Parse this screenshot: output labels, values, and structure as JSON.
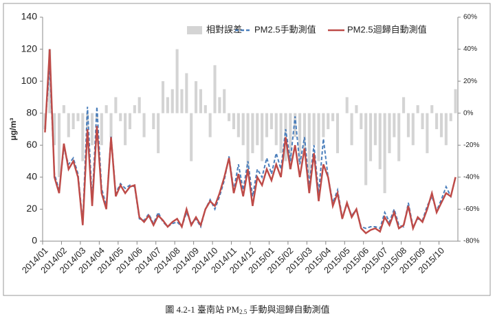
{
  "chart_data": {
    "type": "combo",
    "ylabel": "μg/m³",
    "caption": [
      "圖 4.2-1 臺南站 PM",
      "2.5",
      " 手動與迴歸自動測值"
    ],
    "categories": [
      "2014/01",
      null,
      null,
      null,
      "2014/02",
      null,
      null,
      null,
      "2014/03",
      null,
      null,
      null,
      "2014/04",
      null,
      null,
      null,
      "2014/05",
      null,
      null,
      null,
      "2014/06",
      null,
      null,
      null,
      "2014/07",
      null,
      null,
      null,
      "2014/08",
      null,
      null,
      null,
      "2014/09",
      null,
      null,
      null,
      "2014/10",
      null,
      null,
      null,
      "2014/11",
      null,
      null,
      null,
      "2014/12",
      null,
      null,
      null,
      "2015/01",
      null,
      null,
      null,
      "2015/02",
      null,
      null,
      null,
      "2015/03",
      null,
      null,
      null,
      "2015/04",
      null,
      null,
      null,
      "2015/05",
      null,
      null,
      null,
      "2015/06",
      null,
      null,
      null,
      "2015/07",
      null,
      null,
      null,
      "2015/08",
      null,
      null,
      null,
      "2015/09",
      null,
      null,
      null,
      "2015/10",
      null,
      null,
      null
    ],
    "ylim": [
      0,
      140
    ],
    "yticks": [
      0,
      20,
      40,
      60,
      80,
      100,
      120,
      140
    ],
    "y2lim": [
      -80,
      60
    ],
    "y2ticks": [
      {
        "value": -80,
        "label": "-80%"
      },
      {
        "value": -60,
        "label": "-60%"
      },
      {
        "value": -40,
        "label": "-40%"
      },
      {
        "value": -20,
        "label": "-20%"
      },
      {
        "value": 0,
        "label": "0%"
      },
      {
        "value": 20,
        "label": "20%"
      },
      {
        "value": 40,
        "label": "40%"
      },
      {
        "value": 60,
        "label": "60%"
      }
    ],
    "legend": "upper right",
    "series": [
      {
        "name": "相對誤差",
        "mark": "bar",
        "axis": "y2",
        "color": "#d4d4d4",
        "values": [
          -10,
          40,
          -20,
          -40,
          5,
          -15,
          -10,
          -5,
          -30,
          -10,
          -20,
          -5,
          -20,
          5,
          -15,
          10,
          -5,
          -20,
          -10,
          5,
          10,
          -15,
          0,
          -10,
          -25,
          20,
          10,
          15,
          40,
          15,
          25,
          -30,
          20,
          15,
          5,
          -15,
          30,
          10,
          15,
          -5,
          -10,
          -15,
          -20,
          -35,
          -25,
          -20,
          -30,
          -15,
          -10,
          -20,
          -25,
          -30,
          -35,
          -15,
          -30,
          -25,
          -40,
          -20,
          -30,
          -15,
          -10,
          -5,
          -25,
          0,
          10,
          -20,
          5,
          -10,
          -45,
          -30,
          -20,
          -35,
          -50,
          -25,
          -15,
          -30,
          10,
          -15,
          -20,
          5,
          -10,
          -25,
          5,
          -10,
          -15,
          -20,
          -5,
          15
        ]
      },
      {
        "name": "PM2.5手動測值",
        "mark": "line",
        "dash": true,
        "color": "#4a7ebb",
        "values": [
          70,
          110,
          42,
          32,
          58,
          48,
          52,
          42,
          12,
          84,
          25,
          84,
          33,
          22,
          66,
          30,
          36,
          33,
          35,
          34,
          14,
          13,
          17,
          11,
          18,
          12,
          9,
          11,
          12,
          9,
          18,
          11,
          14,
          9,
          20,
          26,
          20,
          28,
          38,
          53,
          32,
          48,
          32,
          50,
          28,
          45,
          40,
          52,
          42,
          55,
          45,
          70,
          50,
          78,
          48,
          65,
          35,
          60,
          30,
          64,
          40,
          24,
          32,
          15,
          23,
          16,
          20,
          9,
          8,
          9,
          9,
          8,
          18,
          12,
          20,
          10,
          9,
          24,
          9,
          14,
          13,
          22,
          28,
          19,
          26,
          34,
          28,
          40
        ]
      },
      {
        "name": "PM2.5迴歸自動測值",
        "mark": "line",
        "dash": false,
        "color": "#be4b48",
        "values": [
          68,
          120,
          40,
          30,
          61,
          45,
          50,
          40,
          10,
          70,
          22,
          72,
          30,
          20,
          65,
          28,
          35,
          30,
          34,
          35,
          15,
          12,
          16,
          10,
          16,
          13,
          9,
          12,
          14,
          9,
          20,
          10,
          15,
          10,
          20,
          25,
          22,
          30,
          40,
          52,
          30,
          42,
          28,
          45,
          22,
          40,
          35,
          45,
          38,
          48,
          40,
          65,
          45,
          60,
          40,
          58,
          30,
          55,
          25,
          48,
          40,
          22,
          30,
          14,
          24,
          15,
          20,
          8,
          5,
          7,
          8,
          6,
          15,
          10,
          18,
          8,
          10,
          22,
          8,
          15,
          12,
          20,
          30,
          18,
          24,
          30,
          28,
          40
        ]
      }
    ]
  }
}
